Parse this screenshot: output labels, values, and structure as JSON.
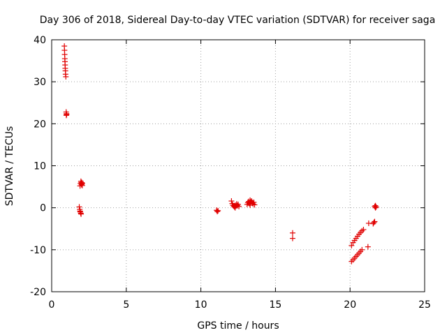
{
  "chart_data": {
    "type": "scatter",
    "title": "Day 306 of 2018, Sidereal Day-to-day VTEC variation (SDTVAR) for receiver saga",
    "xlabel": "GPS time / hours",
    "ylabel": "SDTVAR / TECUs",
    "xlim": [
      0,
      25
    ],
    "ylim": [
      -20,
      40
    ],
    "xticks": [
      0,
      5,
      10,
      15,
      20,
      25
    ],
    "yticks": [
      -20,
      -10,
      0,
      10,
      20,
      30,
      40
    ],
    "grid": true,
    "marker": "plus",
    "color": "#e00000",
    "series": [
      {
        "name": "SDTVAR",
        "x": [
          0.85,
          0.86,
          0.87,
          0.88,
          0.89,
          0.9,
          0.91,
          0.92,
          0.93,
          0.95,
          0.97,
          0.99,
          0.98,
          1.0,
          1.85,
          1.88,
          1.9,
          1.92,
          1.95,
          1.97,
          2.0,
          2.02,
          2.05,
          1.9,
          1.93,
          1.96,
          1.99,
          2.02,
          2.05,
          11.05,
          11.1,
          11.15,
          12.05,
          12.1,
          12.15,
          12.2,
          12.25,
          12.3,
          12.35,
          12.4,
          12.45,
          12.5,
          12.55,
          12.3,
          12.4,
          13.1,
          13.15,
          13.2,
          13.25,
          13.3,
          13.35,
          13.4,
          13.45,
          13.5,
          13.55,
          13.6,
          13.3,
          16.15,
          16.15,
          20.1,
          20.2,
          20.3,
          20.4,
          20.5,
          20.6,
          20.7,
          20.8,
          20.9,
          20.1,
          20.2,
          20.3,
          20.4,
          20.5,
          20.6,
          20.7,
          20.8,
          21.2,
          21.25,
          21.55,
          21.6,
          21.65,
          21.7,
          21.65,
          21.7,
          21.75
        ],
        "y": [
          38.5,
          37.5,
          36.5,
          35.5,
          34.8,
          34.0,
          33.2,
          32.6,
          31.8,
          31.2,
          22.8,
          22.4,
          22.0,
          22.2,
          0.2,
          -0.4,
          -0.8,
          -1.0,
          -1.3,
          -1.5,
          5.5,
          6.0,
          5.8,
          5.2,
          5.8,
          6.3,
          6.0,
          5.7,
          5.3,
          -0.6,
          -0.9,
          -0.7,
          1.6,
          1.0,
          0.6,
          0.4,
          0.2,
          0.6,
          0.4,
          0.9,
          0.5,
          0.8,
          0.3,
          0.0,
          0.7,
          0.8,
          1.2,
          1.5,
          1.0,
          1.8,
          1.4,
          1.6,
          1.1,
          0.9,
          1.3,
          0.7,
          0.6,
          -6.0,
          -7.3,
          -9.0,
          -8.3,
          -7.8,
          -7.3,
          -6.8,
          -6.3,
          -5.9,
          -5.5,
          -5.2,
          -12.8,
          -12.4,
          -12.0,
          -11.6,
          -11.2,
          -10.8,
          -10.4,
          -10.0,
          -9.3,
          -3.7,
          -3.8,
          -3.5,
          -3.3,
          0.0,
          0.3,
          0.5,
          0.2
        ]
      }
    ]
  }
}
